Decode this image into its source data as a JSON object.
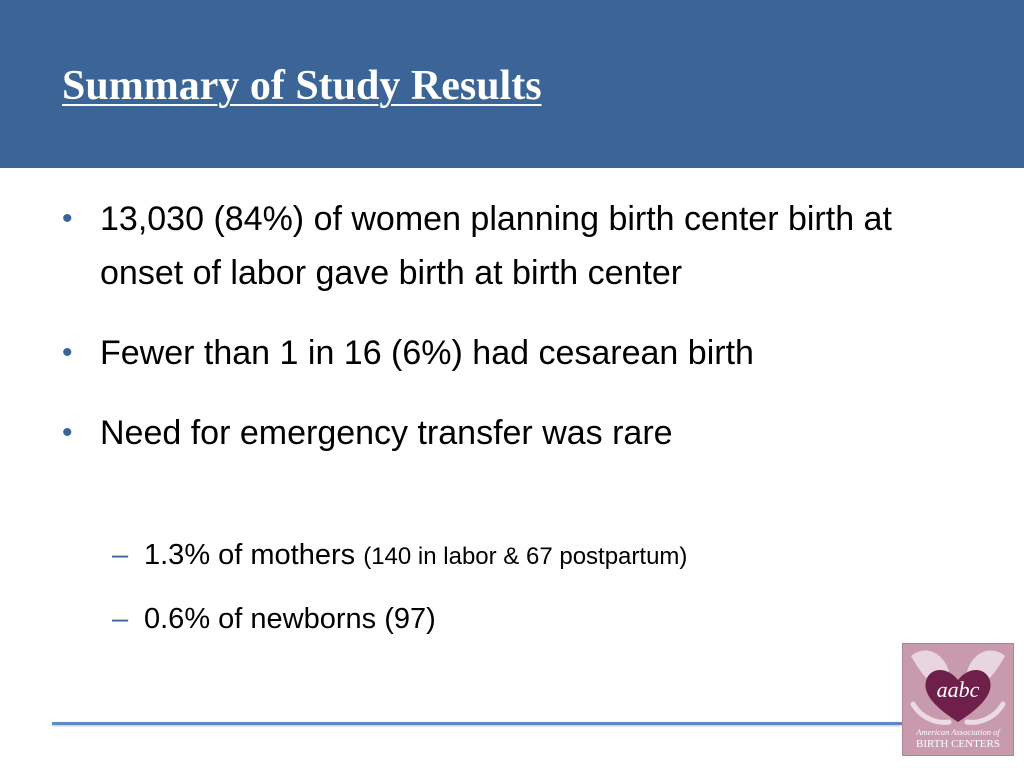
{
  "slide": {
    "title": "Summary of Study Results",
    "bullets": [
      {
        "marker": "•",
        "text": "13,030 (84%) of women planning birth center birth at onset of labor gave birth at birth center"
      },
      {
        "marker": "•",
        "text": "Fewer than 1 in 16 (6%) had cesarean birth"
      },
      {
        "marker": "•",
        "text": "Need for emergency transfer was rare",
        "sub_items": [
          {
            "marker": "–",
            "text": "1.3% of mothers",
            "detail": "(140 in labor & 67 postpartum)"
          },
          {
            "marker": "–",
            "text": "0.6% of newborns (97)"
          }
        ]
      }
    ]
  },
  "logo": {
    "mark": "aabc",
    "line1": "American Association of",
    "line2": "BIRTH CENTERS"
  },
  "colors": {
    "header_background": "#3a6596",
    "title_text": "#ffffff",
    "bullet_marker": "#3a6596",
    "footer_rule": "#5d8ac4",
    "logo_background": "#c89aae",
    "logo_heart": "#6e1f4a"
  }
}
